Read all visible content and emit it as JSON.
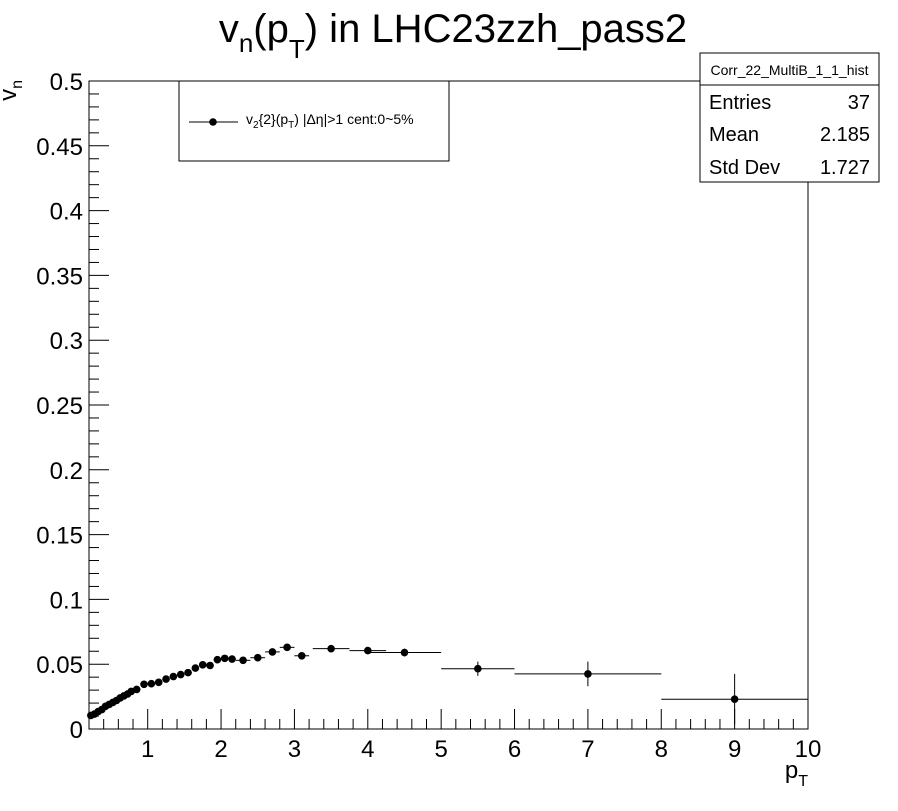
{
  "chart_data": {
    "type": "scatter",
    "title": {
      "base": "v",
      "sub1": "n",
      "mid": "(p",
      "sub2": "T",
      "rest": ") in LHC23zzh_pass2"
    },
    "xlabel": {
      "base": "p",
      "sub": "T"
    },
    "ylabel": {
      "base": "v",
      "sub": "n"
    },
    "xlim": [
      0.2,
      10
    ],
    "ylim": [
      0,
      0.5
    ],
    "x_ticks": [
      "1",
      "2",
      "3",
      "4",
      "5",
      "6",
      "7",
      "8",
      "9",
      "10"
    ],
    "y_ticks": [
      "0",
      "0.05",
      "0.1",
      "0.15",
      "0.2",
      "0.25",
      "0.3",
      "0.35",
      "0.4",
      "0.45",
      "0.5"
    ],
    "legend": {
      "placement": "top-left",
      "entry": {
        "p1": "v",
        "s1": "2",
        "p2": "{2}(p",
        "s2": "T",
        "p3": ") |Δη|>1 cent:0~5%"
      }
    },
    "stats": {
      "name": "Corr_22_MultiB_1_1_hist",
      "rows": [
        {
          "label": "Entries",
          "value": "37"
        },
        {
          "label": "Mean",
          "value": "2.185"
        },
        {
          "label": "Std Dev",
          "value": "1.727"
        }
      ]
    },
    "series": [
      {
        "points": [
          {
            "x": 0.225,
            "xerr": 0.025,
            "y": 0.0105,
            "yerr": 0.0008
          },
          {
            "x": 0.275,
            "xerr": 0.025,
            "y": 0.0115,
            "yerr": 0.0008
          },
          {
            "x": 0.325,
            "xerr": 0.025,
            "y": 0.0135,
            "yerr": 0.0008
          },
          {
            "x": 0.375,
            "xerr": 0.025,
            "y": 0.015,
            "yerr": 0.0008
          },
          {
            "x": 0.425,
            "xerr": 0.025,
            "y": 0.0175,
            "yerr": 0.0008
          },
          {
            "x": 0.475,
            "xerr": 0.025,
            "y": 0.019,
            "yerr": 0.0008
          },
          {
            "x": 0.525,
            "xerr": 0.025,
            "y": 0.0205,
            "yerr": 0.0008
          },
          {
            "x": 0.575,
            "xerr": 0.025,
            "y": 0.022,
            "yerr": 0.0008
          },
          {
            "x": 0.625,
            "xerr": 0.025,
            "y": 0.024,
            "yerr": 0.0008
          },
          {
            "x": 0.675,
            "xerr": 0.025,
            "y": 0.0255,
            "yerr": 0.0008
          },
          {
            "x": 0.725,
            "xerr": 0.025,
            "y": 0.027,
            "yerr": 0.0008
          },
          {
            "x": 0.775,
            "xerr": 0.025,
            "y": 0.029,
            "yerr": 0.0008
          },
          {
            "x": 0.85,
            "xerr": 0.05,
            "y": 0.0305,
            "yerr": 0.0008
          },
          {
            "x": 0.95,
            "xerr": 0.05,
            "y": 0.0345,
            "yerr": 0.0008
          },
          {
            "x": 1.05,
            "xerr": 0.05,
            "y": 0.035,
            "yerr": 0.0008
          },
          {
            "x": 1.15,
            "xerr": 0.05,
            "y": 0.036,
            "yerr": 0.0008
          },
          {
            "x": 1.25,
            "xerr": 0.05,
            "y": 0.0385,
            "yerr": 0.0008
          },
          {
            "x": 1.35,
            "xerr": 0.05,
            "y": 0.0405,
            "yerr": 0.0008
          },
          {
            "x": 1.45,
            "xerr": 0.05,
            "y": 0.042,
            "yerr": 0.0008
          },
          {
            "x": 1.55,
            "xerr": 0.05,
            "y": 0.0435,
            "yerr": 0.0008
          },
          {
            "x": 1.65,
            "xerr": 0.05,
            "y": 0.047,
            "yerr": 0.0008
          },
          {
            "x": 1.75,
            "xerr": 0.05,
            "y": 0.0495,
            "yerr": 0.0008
          },
          {
            "x": 1.85,
            "xerr": 0.05,
            "y": 0.049,
            "yerr": 0.0008
          },
          {
            "x": 1.95,
            "xerr": 0.05,
            "y": 0.0535,
            "yerr": 0.0008
          },
          {
            "x": 2.05,
            "xerr": 0.05,
            "y": 0.0545,
            "yerr": 0.0008
          },
          {
            "x": 2.15,
            "xerr": 0.05,
            "y": 0.054,
            "yerr": 0.0008
          },
          {
            "x": 2.3,
            "xerr": 0.1,
            "y": 0.053,
            "yerr": 0.0012
          },
          {
            "x": 2.5,
            "xerr": 0.1,
            "y": 0.055,
            "yerr": 0.0012
          },
          {
            "x": 2.7,
            "xerr": 0.1,
            "y": 0.0595,
            "yerr": 0.0015
          },
          {
            "x": 2.9,
            "xerr": 0.1,
            "y": 0.063,
            "yerr": 0.0015
          },
          {
            "x": 3.1,
            "xerr": 0.1,
            "y": 0.0565,
            "yerr": 0.0015
          },
          {
            "x": 3.5,
            "xerr": 0.25,
            "y": 0.062,
            "yerr": 0.0018
          },
          {
            "x": 4,
            "xerr": 0.25,
            "y": 0.0605,
            "yerr": 0.002
          },
          {
            "x": 4.5,
            "xerr": 0.5,
            "y": 0.059,
            "yerr": 0.003
          },
          {
            "x": 5.5,
            "xerr": 0.5,
            "y": 0.0465,
            "yerr": 0.0055
          },
          {
            "x": 7,
            "xerr": 1,
            "y": 0.0425,
            "yerr": 0.0095
          },
          {
            "x": 9,
            "xerr": 1,
            "y": 0.023,
            "yerr": 0.0195
          }
        ]
      }
    ],
    "marker_color": "#000000"
  }
}
